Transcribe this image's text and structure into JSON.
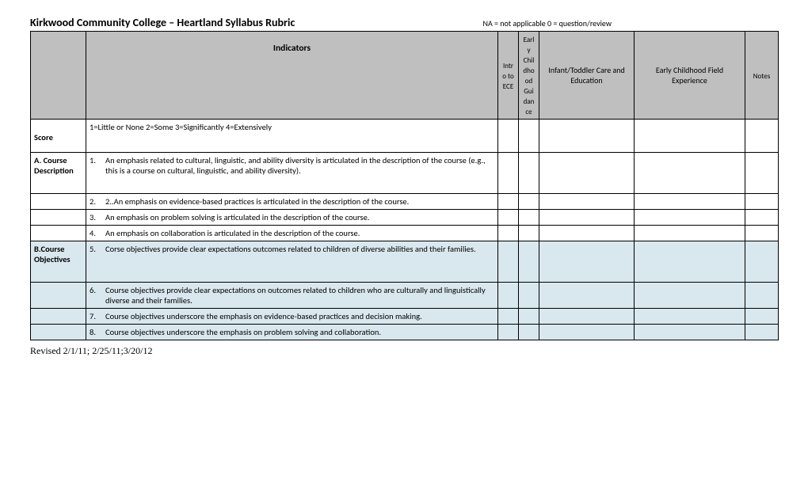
{
  "header": {
    "title": "Kirkwood Community College – Heartland Syllabus Rubric",
    "legend": "NA = not applicable 0 = question/review"
  },
  "columns": {
    "indicators_header": "Indicators",
    "col1": "Intro to ECE",
    "col2": "Early Childhood Guidance",
    "col3": "Infant/Toddler Care and Education",
    "col4": "Early Childhood Field Experience",
    "notes": "Notes"
  },
  "score": {
    "label": "Score",
    "legend": "1=Little or None  2=Some  3=Significantly  4=Extensively"
  },
  "sectionA": {
    "label": "A. Course Description",
    "items": {
      "1": "An emphasis related to cultural, linguistic, and ability diversity is articulated in the description of the course (e.g., this is a course on cultural, linguistic, and ability diversity).",
      "2": "2..An emphasis on evidence-based practices is articulated in the description of the course.",
      "3": "An emphasis on problem solving is articulated in the description of the course.",
      "4": "An emphasis on collaboration is articulated in the description of the course."
    }
  },
  "sectionB": {
    "label": "B.Course Objectives",
    "items": {
      "5": "Corse objectives provide clear expectations outcomes related to children of diverse abilities and their families.",
      "6": "Course objectives provide clear expectations on outcomes related to children who are culturally and linguistically diverse and their families.",
      "7": "Course objectives underscore the emphasis on evidence-based practices and decision making.",
      "8": "Course objectives underscore the emphasis on problem solving and collaboration."
    }
  },
  "footer": "Revised 2/1/11; 2/25/11;3/20/12",
  "colors": {
    "header_bg": "#bfbfbf",
    "shaded_bg": "#d9e7ee",
    "border": "#000000",
    "page_bg": "#ffffff"
  }
}
